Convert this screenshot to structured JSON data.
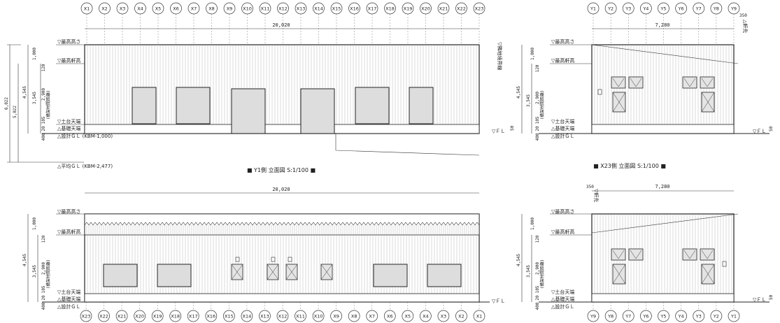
{
  "views": {
    "y1": {
      "title": "■ Y1側 立面図 S:1/100 ■",
      "grid": [
        "X1",
        "X2",
        "X3",
        "X4",
        "X5",
        "X6",
        "X7",
        "X8",
        "X9",
        "X10",
        "X11",
        "X12",
        "X13",
        "X14",
        "X15",
        "X16",
        "X17",
        "X18",
        "X19",
        "X20",
        "X21",
        "X22",
        "X23"
      ],
      "overall_dim": "20,020",
      "levels": [
        "▽最高高さ",
        "▽最高軒高",
        "▽土台天端",
        "△基礎天端",
        "△設計ＧＬ (KBM-1,000)",
        "△平均ＧＬ (KBM-2,477)"
      ],
      "dims": [
        "1,000",
        "4,545",
        "3,545",
        "2,900",
        "120",
        "105",
        "20",
        "400",
        "6,022",
        "5,022"
      ],
      "frame_note": "(構架材間距離)",
      "right_note": "▽隣地境界線",
      "fl": "▽ＦＬ",
      "fl_dim": "50"
    },
    "x23": {
      "title": "■ X23側 立面図 S:1/100 ■",
      "grid": [
        "Y1",
        "Y2",
        "Y3",
        "Y4",
        "Y5",
        "Y6",
        "Y7",
        "Y8",
        "Y9"
      ],
      "overall_dim": "7,280",
      "eave_dim": "350",
      "eave_note": "△軒先",
      "levels": [
        "▽最高高さ",
        "▽最高軒高",
        "▽土台天端",
        "△基礎天端",
        "△設計ＧＬ"
      ],
      "dims": [
        "1,000",
        "4,545",
        "3,545",
        "2,900",
        "120",
        "105",
        "20",
        "400"
      ],
      "frame_note": "(構架材間距離)",
      "fl": "▽ＦＬ",
      "fl_dim": "50"
    },
    "y9": {
      "grid": [
        "X23",
        "X22",
        "X21",
        "X20",
        "X19",
        "X18",
        "X17",
        "X16",
        "X15",
        "X14",
        "X13",
        "X12",
        "X11",
        "X10",
        "X9",
        "X8",
        "X7",
        "X6",
        "X5",
        "X4",
        "X3",
        "X2",
        "X1"
      ],
      "overall_dim": "20,020",
      "levels": [
        "▽最高高さ",
        "▽最高軒高",
        "▽土台天端",
        "△基礎天端",
        "△設計ＧＬ"
      ],
      "dims": [
        "1,000",
        "4,545",
        "3,545",
        "2,900",
        "120",
        "105",
        "20",
        "400"
      ],
      "frame_note": "(構架材間距離)",
      "fl": "▽ＦＬ"
    },
    "x1": {
      "grid": [
        "Y9",
        "Y8",
        "Y7",
        "Y6",
        "Y5",
        "Y4",
        "Y3",
        "Y2",
        "Y1"
      ],
      "overall_dim": "7,280",
      "eave_dim": "350",
      "eave_note": "▽軒先",
      "levels": [
        "▽最高高さ",
        "▽最高軒高",
        "▽土台天端",
        "△基礎天端",
        "△設計ＧＬ"
      ],
      "dims": [
        "1,000",
        "4,545",
        "3,545",
        "2,900",
        "120",
        "105",
        "20",
        "400"
      ],
      "frame_note": "(構架材間距離)",
      "fl": "▽ＦＬ",
      "fl_dim": "50"
    }
  }
}
